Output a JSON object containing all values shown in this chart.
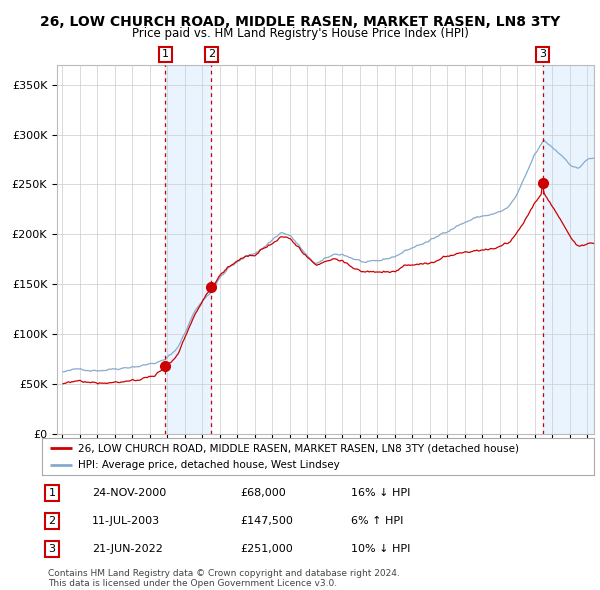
{
  "title": "26, LOW CHURCH ROAD, MIDDLE RASEN, MARKET RASEN, LN8 3TY",
  "subtitle": "Price paid vs. HM Land Registry's House Price Index (HPI)",
  "red_label": "26, LOW CHURCH ROAD, MIDDLE RASEN, MARKET RASEN, LN8 3TY (detached house)",
  "blue_label": "HPI: Average price, detached house, West Lindsey",
  "sales": [
    {
      "num": 1,
      "date_dec": 2000.9,
      "price": 68000,
      "label": "24-NOV-2000",
      "pct": "16%",
      "dir": "↓"
    },
    {
      "num": 2,
      "date_dec": 2003.52,
      "price": 147500,
      "label": "11-JUL-2003",
      "pct": "6%",
      "dir": "↑"
    },
    {
      "num": 3,
      "date_dec": 2022.47,
      "price": 251000,
      "label": "21-JUN-2022",
      "pct": "10%",
      "dir": "↓"
    }
  ],
  "footnote1": "Contains HM Land Registry data © Crown copyright and database right 2024.",
  "footnote2": "This data is licensed under the Open Government Licence v3.0.",
  "ylim": [
    0,
    370000
  ],
  "yticks": [
    0,
    50000,
    100000,
    150000,
    200000,
    250000,
    300000,
    350000
  ],
  "start_year": 1995,
  "end_year": 2025,
  "bg_color": "#ffffff",
  "grid_color": "#cccccc",
  "red_color": "#cc0000",
  "blue_color": "#88aacc"
}
